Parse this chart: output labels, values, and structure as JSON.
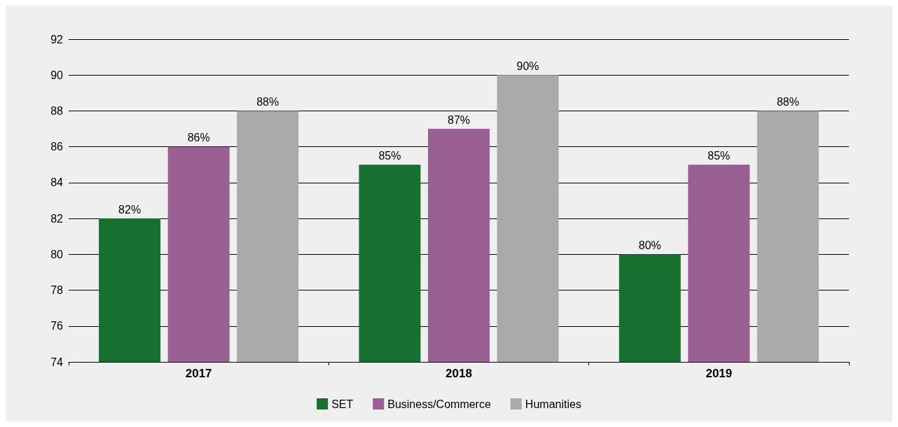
{
  "chart_data": {
    "type": "bar",
    "categories": [
      "2017",
      "2018",
      "2019"
    ],
    "series": [
      {
        "name": "SET",
        "color": "#177030",
        "values": [
          82,
          85,
          80
        ],
        "value_labels": [
          "82%",
          "85%",
          "80%"
        ]
      },
      {
        "name": "Business/Commerce",
        "color": "#9a6094",
        "values": [
          86,
          87,
          85
        ],
        "value_labels": [
          "86%",
          "87%",
          "85%"
        ]
      },
      {
        "name": "Humanities",
        "color": "#aaaaaa",
        "values": [
          88,
          90,
          88
        ],
        "value_labels": [
          "88%",
          "90%",
          "88%"
        ]
      }
    ],
    "ylim": [
      74,
      92
    ],
    "yticks": [
      74,
      76,
      78,
      80,
      82,
      84,
      86,
      88,
      90,
      92
    ],
    "grid": "y",
    "legend": "bottom"
  }
}
